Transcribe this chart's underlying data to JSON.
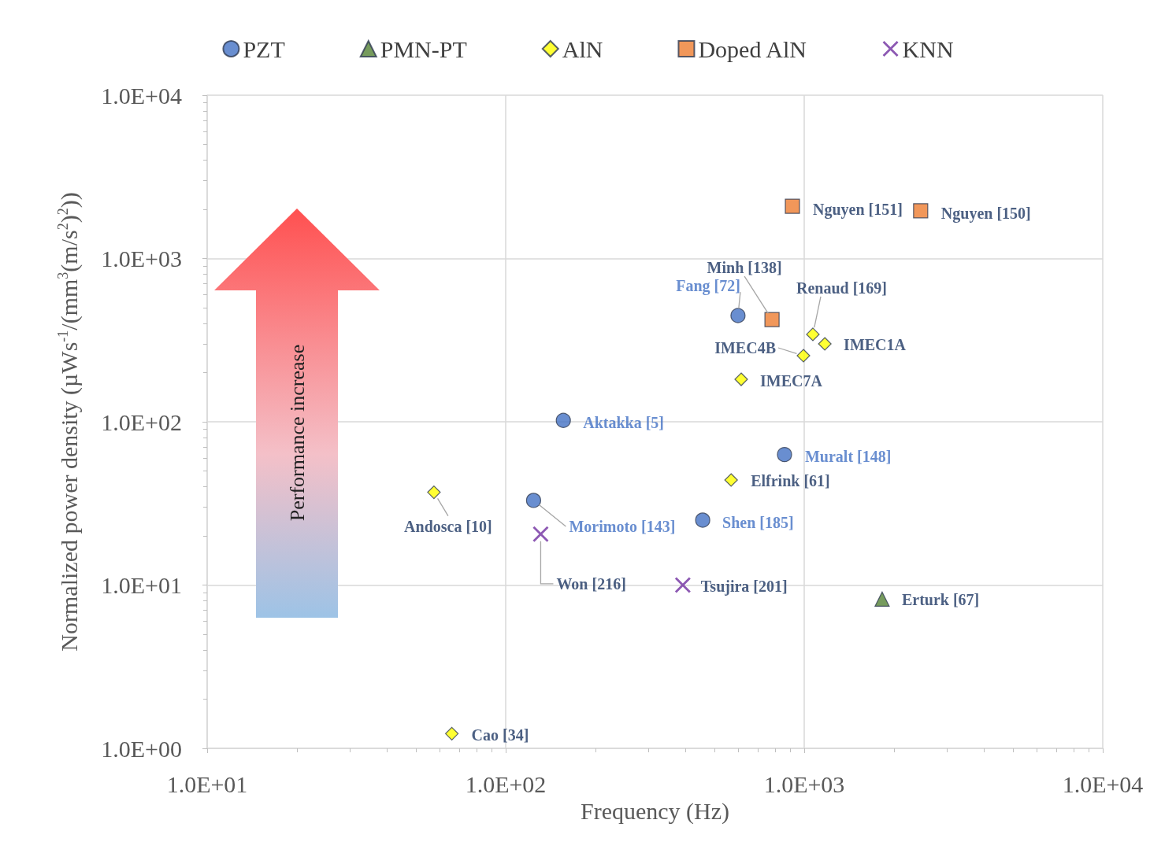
{
  "chart_data": {
    "type": "scatter",
    "xlabel": "Frequency (Hz)",
    "ylabel": "Normalized power density (µWs$^{-1}$/(mm$^{3}$(m/s$^{2}$)$^{2}$))",
    "log": "xy",
    "grid": true,
    "legend": "top",
    "xlim": [
      10,
      10000
    ],
    "xticks": [
      {
        "value": 10,
        "label": "1.0E+01"
      },
      {
        "value": 100,
        "label": "1.0E+02"
      },
      {
        "value": 1000,
        "label": "1.0E+03"
      },
      {
        "value": 10000,
        "label": "1.0E+04"
      }
    ],
    "ylim": [
      1,
      10000
    ],
    "yticks": [
      {
        "value": 1,
        "label": "1.0E+00"
      },
      {
        "value": 10,
        "label": "1.0E+01"
      },
      {
        "value": 100,
        "label": "1.0E+02"
      },
      {
        "value": 1000,
        "label": "1.0E+03"
      },
      {
        "value": 10000,
        "label": "1.0E+04"
      }
    ],
    "series": [
      {
        "name": "PZT",
        "color": "#4472c4",
        "marker": "circle",
        "x": [
          600,
          156,
          859,
          124,
          457
        ],
        "values": [
          447,
          102,
          63,
          33,
          25
        ]
      },
      {
        "name": "PMN-PT",
        "color": "#548235",
        "marker": "triangle",
        "x": [
          1824
        ],
        "values": [
          8.2
        ]
      },
      {
        "name": "AlN",
        "color": "#ffff00",
        "marker": "diamond",
        "x": [
          1069,
          1172,
          994,
          615,
          569,
          57.5,
          66
        ],
        "values": [
          343,
          300,
          254,
          182,
          44,
          37,
          1.23
        ]
      },
      {
        "name": "Doped AlN",
        "color": "#ed7d31",
        "marker": "square",
        "x": [
          913,
          2455,
          780
        ],
        "values": [
          2090,
          1960,
          423
        ]
      },
      {
        "name": "KNN",
        "color": "#7030a0",
        "marker": "cross",
        "x": [
          131,
          392
        ],
        "values": [
          20.5,
          10
        ]
      }
    ],
    "annotations": [
      {
        "text": "Fang [72]",
        "x": 600,
        "y": 447
      },
      {
        "text": "Aktakka [5]",
        "x": 156,
        "y": 102
      },
      {
        "text": "Muralt [148]",
        "x": 859,
        "y": 63
      },
      {
        "text": "Morimoto [143]",
        "x": 124,
        "y": 33
      },
      {
        "text": "Shen [185]",
        "x": 457,
        "y": 25
      },
      {
        "text": "Erturk [67]",
        "x": 1824,
        "y": 8.2
      },
      {
        "text": "Renaud [169]",
        "x": 1069,
        "y": 343
      },
      {
        "text": "IMEC1A",
        "x": 1172,
        "y": 300
      },
      {
        "text": "IMEC4B",
        "x": 994,
        "y": 254
      },
      {
        "text": "IMEC7A",
        "x": 615,
        "y": 182
      },
      {
        "text": "Elfrink [61]",
        "x": 569,
        "y": 44
      },
      {
        "text": "Andosca [10]",
        "x": 57.5,
        "y": 37
      },
      {
        "text": "Cao [34]",
        "x": 66,
        "y": 1.23
      },
      {
        "text": "Nguyen [151]",
        "x": 913,
        "y": 2090
      },
      {
        "text": "Nguyen [150]",
        "x": 2455,
        "y": 1960
      },
      {
        "text": "Minh [138]",
        "x": 780,
        "y": 423
      },
      {
        "text": "Won [216]",
        "x": 131,
        "y": 20.5
      },
      {
        "text": "Tsujira [201]",
        "x": 392,
        "y": 10
      },
      "Performance increase"
    ]
  }
}
